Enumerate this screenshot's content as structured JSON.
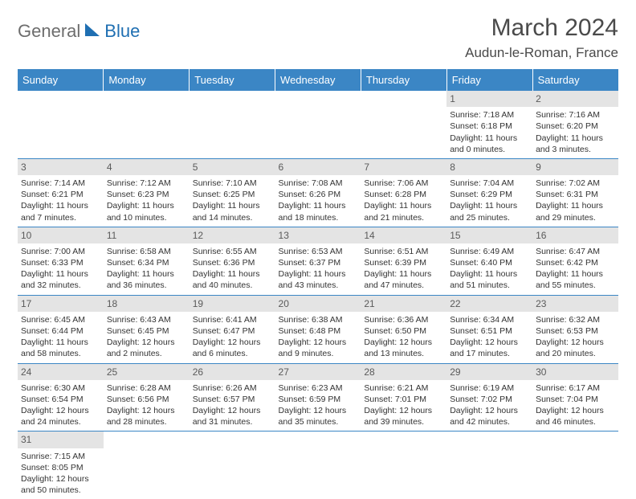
{
  "logo": {
    "text_gray": "General",
    "text_blue": "Blue"
  },
  "title": {
    "month": "March 2024",
    "location": "Audun-le-Roman, France"
  },
  "weekdays": [
    "Sunday",
    "Monday",
    "Tuesday",
    "Wednesday",
    "Thursday",
    "Friday",
    "Saturday"
  ],
  "colors": {
    "header_bg": "#3b86c5",
    "header_text": "#ffffff",
    "daynum_bg": "#e4e4e4",
    "rule": "#3b86c5",
    "body_text": "#333333",
    "logo_gray": "#6d6d6d",
    "logo_blue": "#1f6fb2"
  },
  "weeks": [
    [
      null,
      null,
      null,
      null,
      null,
      {
        "n": "1",
        "sr": "7:18 AM",
        "ss": "6:18 PM",
        "dl": "11 hours and 0 minutes."
      },
      {
        "n": "2",
        "sr": "7:16 AM",
        "ss": "6:20 PM",
        "dl": "11 hours and 3 minutes."
      }
    ],
    [
      {
        "n": "3",
        "sr": "7:14 AM",
        "ss": "6:21 PM",
        "dl": "11 hours and 7 minutes."
      },
      {
        "n": "4",
        "sr": "7:12 AM",
        "ss": "6:23 PM",
        "dl": "11 hours and 10 minutes."
      },
      {
        "n": "5",
        "sr": "7:10 AM",
        "ss": "6:25 PM",
        "dl": "11 hours and 14 minutes."
      },
      {
        "n": "6",
        "sr": "7:08 AM",
        "ss": "6:26 PM",
        "dl": "11 hours and 18 minutes."
      },
      {
        "n": "7",
        "sr": "7:06 AM",
        "ss": "6:28 PM",
        "dl": "11 hours and 21 minutes."
      },
      {
        "n": "8",
        "sr": "7:04 AM",
        "ss": "6:29 PM",
        "dl": "11 hours and 25 minutes."
      },
      {
        "n": "9",
        "sr": "7:02 AM",
        "ss": "6:31 PM",
        "dl": "11 hours and 29 minutes."
      }
    ],
    [
      {
        "n": "10",
        "sr": "7:00 AM",
        "ss": "6:33 PM",
        "dl": "11 hours and 32 minutes."
      },
      {
        "n": "11",
        "sr": "6:58 AM",
        "ss": "6:34 PM",
        "dl": "11 hours and 36 minutes."
      },
      {
        "n": "12",
        "sr": "6:55 AM",
        "ss": "6:36 PM",
        "dl": "11 hours and 40 minutes."
      },
      {
        "n": "13",
        "sr": "6:53 AM",
        "ss": "6:37 PM",
        "dl": "11 hours and 43 minutes."
      },
      {
        "n": "14",
        "sr": "6:51 AM",
        "ss": "6:39 PM",
        "dl": "11 hours and 47 minutes."
      },
      {
        "n": "15",
        "sr": "6:49 AM",
        "ss": "6:40 PM",
        "dl": "11 hours and 51 minutes."
      },
      {
        "n": "16",
        "sr": "6:47 AM",
        "ss": "6:42 PM",
        "dl": "11 hours and 55 minutes."
      }
    ],
    [
      {
        "n": "17",
        "sr": "6:45 AM",
        "ss": "6:44 PM",
        "dl": "11 hours and 58 minutes."
      },
      {
        "n": "18",
        "sr": "6:43 AM",
        "ss": "6:45 PM",
        "dl": "12 hours and 2 minutes."
      },
      {
        "n": "19",
        "sr": "6:41 AM",
        "ss": "6:47 PM",
        "dl": "12 hours and 6 minutes."
      },
      {
        "n": "20",
        "sr": "6:38 AM",
        "ss": "6:48 PM",
        "dl": "12 hours and 9 minutes."
      },
      {
        "n": "21",
        "sr": "6:36 AM",
        "ss": "6:50 PM",
        "dl": "12 hours and 13 minutes."
      },
      {
        "n": "22",
        "sr": "6:34 AM",
        "ss": "6:51 PM",
        "dl": "12 hours and 17 minutes."
      },
      {
        "n": "23",
        "sr": "6:32 AM",
        "ss": "6:53 PM",
        "dl": "12 hours and 20 minutes."
      }
    ],
    [
      {
        "n": "24",
        "sr": "6:30 AM",
        "ss": "6:54 PM",
        "dl": "12 hours and 24 minutes."
      },
      {
        "n": "25",
        "sr": "6:28 AM",
        "ss": "6:56 PM",
        "dl": "12 hours and 28 minutes."
      },
      {
        "n": "26",
        "sr": "6:26 AM",
        "ss": "6:57 PM",
        "dl": "12 hours and 31 minutes."
      },
      {
        "n": "27",
        "sr": "6:23 AM",
        "ss": "6:59 PM",
        "dl": "12 hours and 35 minutes."
      },
      {
        "n": "28",
        "sr": "6:21 AM",
        "ss": "7:01 PM",
        "dl": "12 hours and 39 minutes."
      },
      {
        "n": "29",
        "sr": "6:19 AM",
        "ss": "7:02 PM",
        "dl": "12 hours and 42 minutes."
      },
      {
        "n": "30",
        "sr": "6:17 AM",
        "ss": "7:04 PM",
        "dl": "12 hours and 46 minutes."
      }
    ],
    [
      {
        "n": "31",
        "sr": "7:15 AM",
        "ss": "8:05 PM",
        "dl": "12 hours and 50 minutes."
      },
      null,
      null,
      null,
      null,
      null,
      null
    ]
  ],
  "labels": {
    "sunrise": "Sunrise:",
    "sunset": "Sunset:",
    "daylight": "Daylight:"
  }
}
